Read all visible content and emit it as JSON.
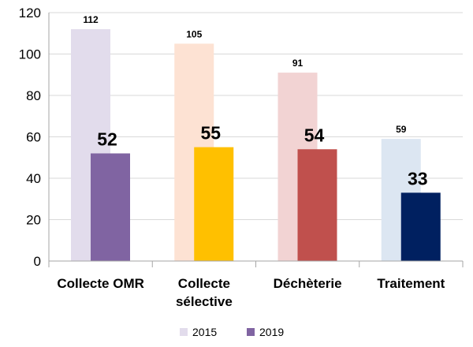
{
  "chart_data": {
    "type": "bar",
    "categories": [
      [
        "Collecte OMR"
      ],
      [
        "Collecte",
        "sélective"
      ],
      [
        "Déchèterie"
      ],
      [
        "Traitement"
      ]
    ],
    "ylim": [
      0,
      120
    ],
    "yticks": [
      0,
      20,
      40,
      60,
      80,
      100,
      120
    ],
    "grid": true,
    "legend_position": "bottom",
    "series": [
      {
        "name": "2015",
        "legend_color": "#e2dcec",
        "colors": [
          "#e2dcec",
          "#fde2d3",
          "#f2d3d3",
          "#dce6f2"
        ],
        "values": [
          112,
          105,
          91,
          59
        ]
      },
      {
        "name": "2019",
        "legend_color": "#8064a2",
        "colors": [
          "#8064a2",
          "#ffc000",
          "#c0504d",
          "#002060"
        ],
        "values": [
          52,
          55,
          54,
          33
        ]
      }
    ]
  }
}
